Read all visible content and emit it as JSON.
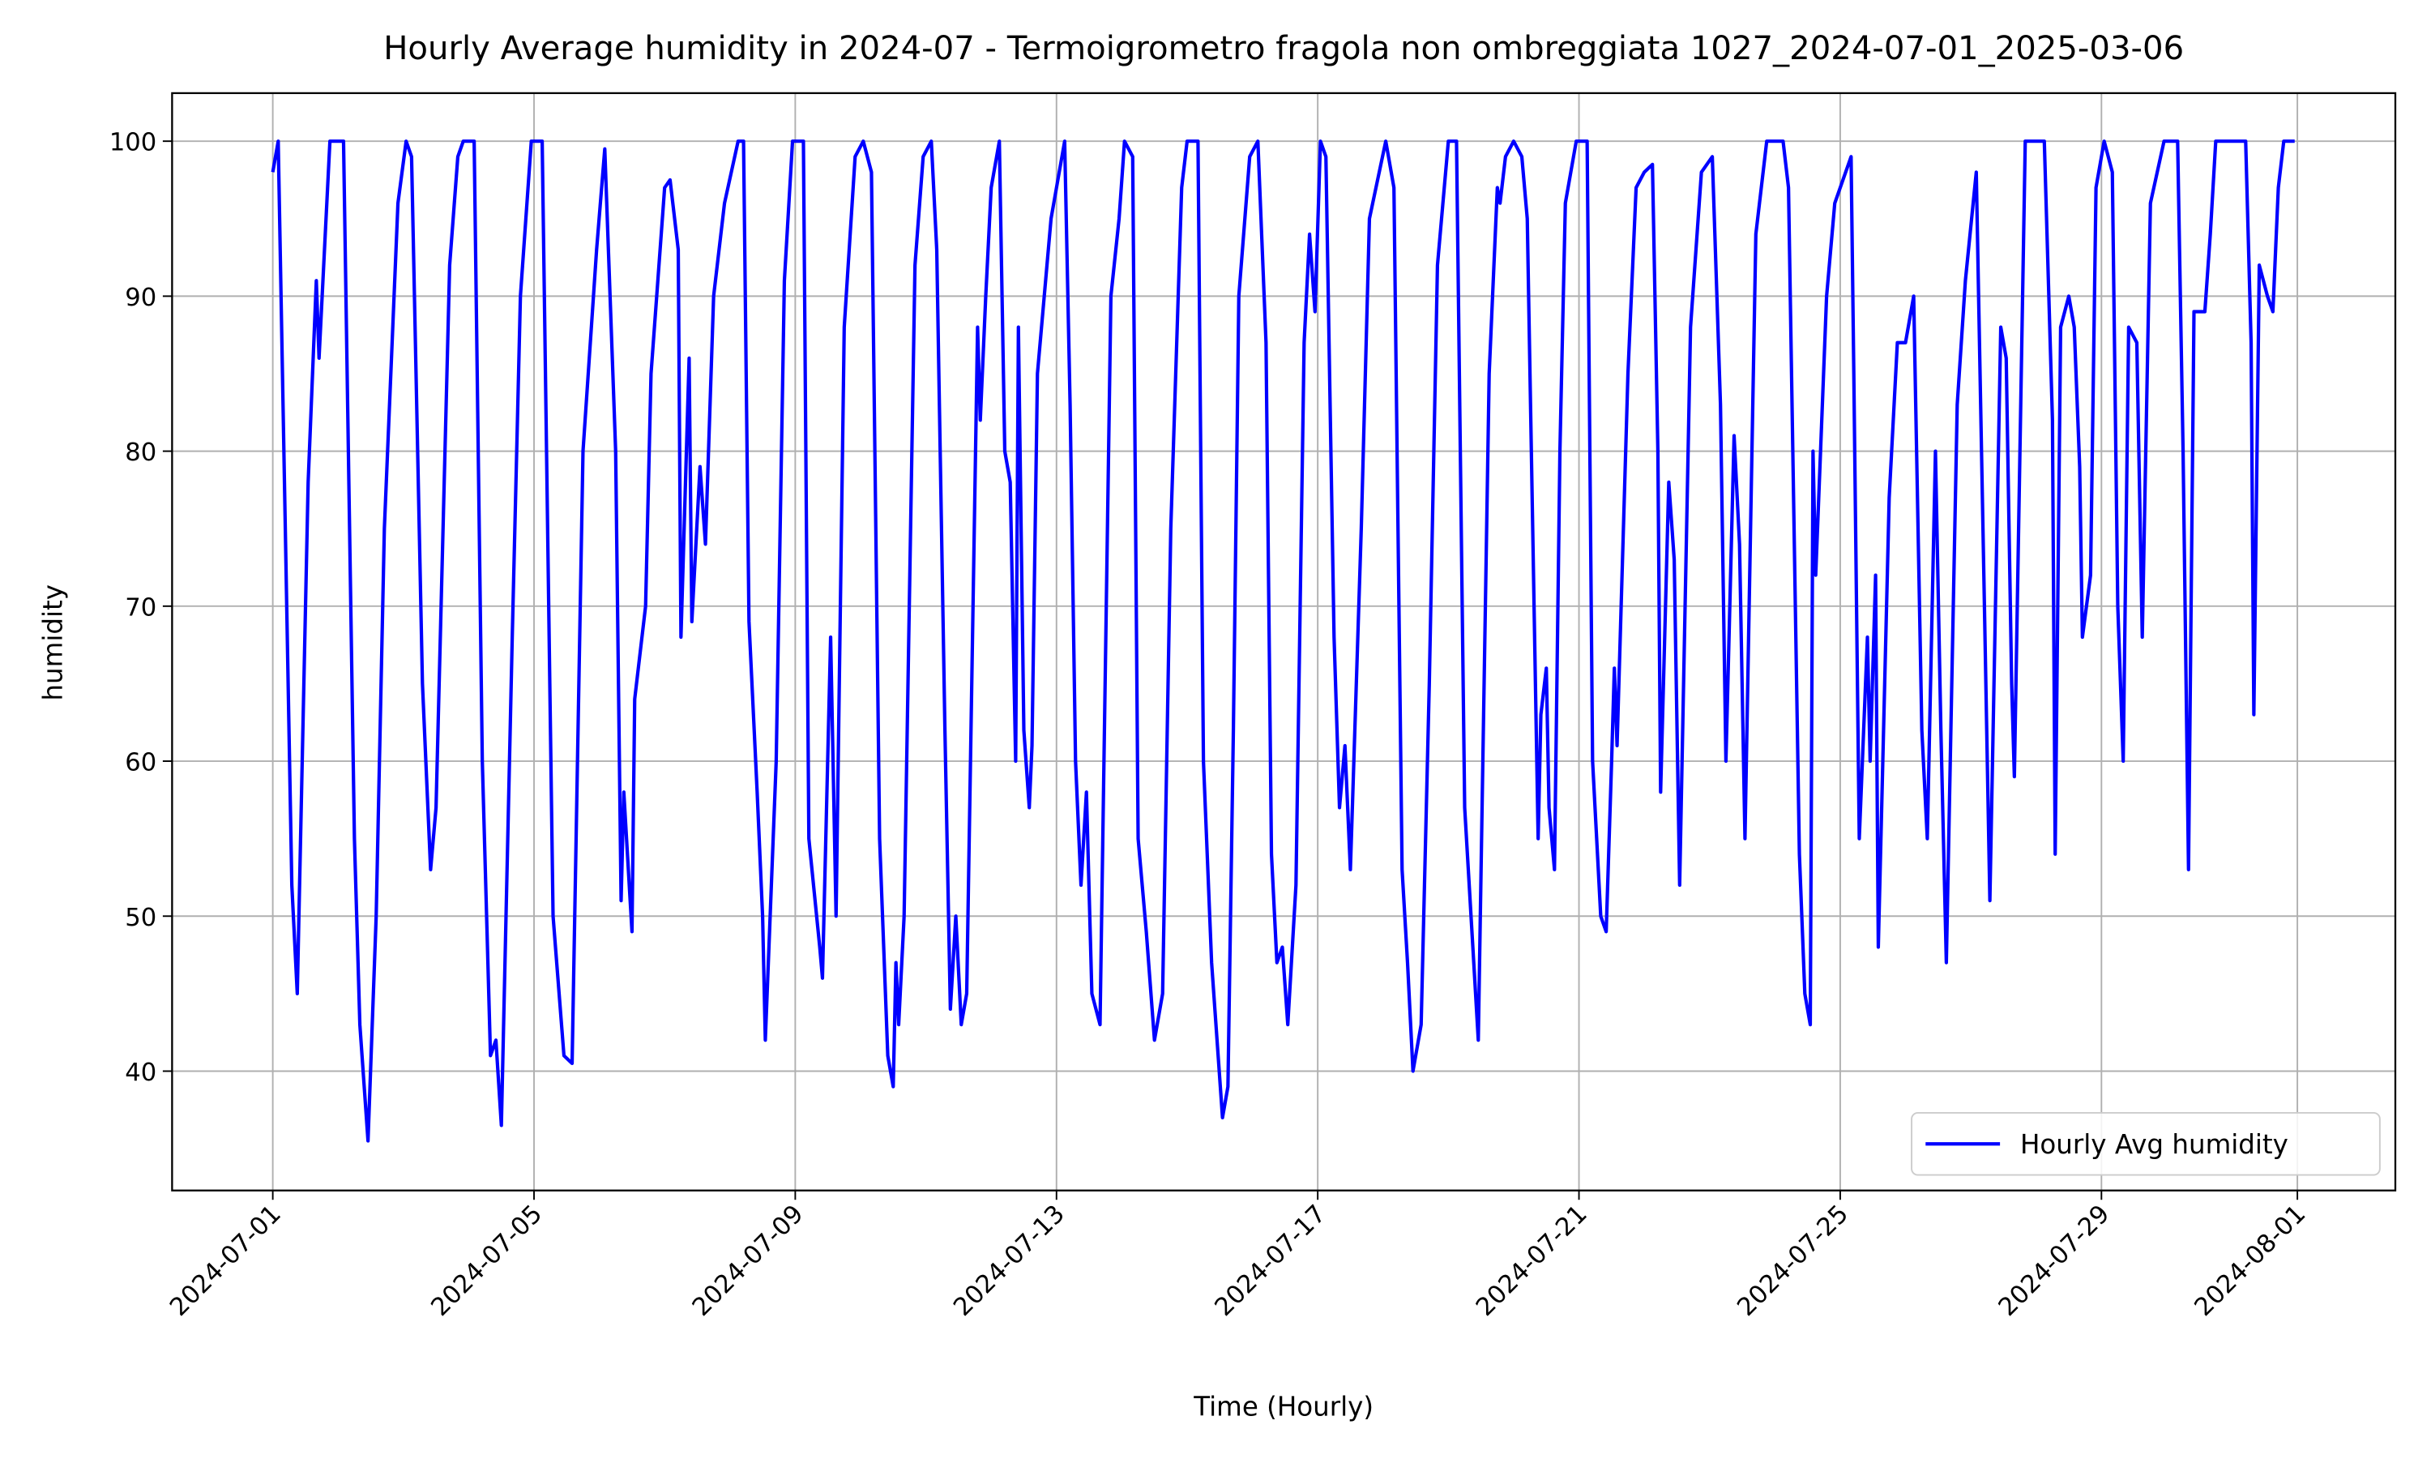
{
  "chart_data": {
    "type": "line",
    "title": "Hourly Average humidity in 2024-07 - Termoigrometro fragola non ombreggiata 1027_2024-07-01_2025-03-06",
    "x_label": "Time (Hourly)",
    "y_label": "humidity",
    "x": [
      "2024-07-01 00:00",
      "2024-07-01 02:00",
      "2024-07-01 07:00",
      "2024-07-01 09:00",
      "2024-07-01 13:00",
      "2024-07-01 16:00",
      "2024-07-01 17:00",
      "2024-07-01 21:00",
      "2024-07-02 02:00",
      "2024-07-02 06:00",
      "2024-07-02 08:00",
      "2024-07-02 11:00",
      "2024-07-02 14:00",
      "2024-07-02 17:00",
      "2024-07-02 22:00",
      "2024-07-03 01:00",
      "2024-07-03 03:00",
      "2024-07-03 07:00",
      "2024-07-03 10:00",
      "2024-07-03 12:00",
      "2024-07-03 17:00",
      "2024-07-03 20:00",
      "2024-07-03 22:00",
      "2024-07-04 02:00",
      "2024-07-04 05:00",
      "2024-07-04 08:00",
      "2024-07-04 10:00",
      "2024-07-04 12:00",
      "2024-07-04 16:00",
      "2024-07-04 19:00",
      "2024-07-04 23:00",
      "2024-07-05 03:00",
      "2024-07-05 07:00",
      "2024-07-05 11:00",
      "2024-07-05 14:00",
      "2024-07-05 18:00",
      "2024-07-05 23:00",
      "2024-07-06 02:00",
      "2024-07-06 06:00",
      "2024-07-06 08:00",
      "2024-07-06 09:00",
      "2024-07-06 12:00",
      "2024-07-06 13:00",
      "2024-07-06 17:00",
      "2024-07-06 19:00",
      "2024-07-07 00:00",
      "2024-07-07 02:00",
      "2024-07-07 05:00",
      "2024-07-07 06:00",
      "2024-07-07 09:00",
      "2024-07-07 10:00",
      "2024-07-07 13:00",
      "2024-07-07 15:00",
      "2024-07-07 18:00",
      "2024-07-07 22:00",
      "2024-07-08 03:00",
      "2024-07-08 05:00",
      "2024-07-08 07:00",
      "2024-07-08 10:00",
      "2024-07-08 12:00",
      "2024-07-08 13:00",
      "2024-07-08 17:00",
      "2024-07-08 20:00",
      "2024-07-08 23:00",
      "2024-07-09 03:00",
      "2024-07-09 05:00",
      "2024-07-09 09:00",
      "2024-07-09 10:00",
      "2024-07-09 13:00",
      "2024-07-09 15:00",
      "2024-07-09 18:00",
      "2024-07-09 22:00",
      "2024-07-10 01:00",
      "2024-07-10 04:00",
      "2024-07-10 07:00",
      "2024-07-10 10:00",
      "2024-07-10 12:00",
      "2024-07-10 13:00",
      "2024-07-10 14:00",
      "2024-07-10 16:00",
      "2024-07-10 20:00",
      "2024-07-10 23:00",
      "2024-07-11 02:00",
      "2024-07-11 04:00",
      "2024-07-11 07:00",
      "2024-07-11 09:00",
      "2024-07-11 11:00",
      "2024-07-11 13:00",
      "2024-07-11 15:00",
      "2024-07-11 19:00",
      "2024-07-11 20:00",
      "2024-07-11 22:00",
      "2024-07-12 00:00",
      "2024-07-12 03:00",
      "2024-07-12 05:00",
      "2024-07-12 07:00",
      "2024-07-12 09:00",
      "2024-07-12 10:00",
      "2024-07-12 12:00",
      "2024-07-12 14:00",
      "2024-07-12 15:00",
      "2024-07-12 17:00",
      "2024-07-12 22:00",
      "2024-07-13 03:00",
      "2024-07-13 05:00",
      "2024-07-13 07:00",
      "2024-07-13 09:00",
      "2024-07-13 11:00",
      "2024-07-13 13:00",
      "2024-07-13 16:00",
      "2024-07-13 20:00",
      "2024-07-13 23:00",
      "2024-07-14 01:00",
      "2024-07-14 04:00",
      "2024-07-14 06:00",
      "2024-07-14 09:00",
      "2024-07-14 12:00",
      "2024-07-14 15:00",
      "2024-07-14 18:00",
      "2024-07-14 22:00",
      "2024-07-15 00:00",
      "2024-07-15 04:00",
      "2024-07-15 06:00",
      "2024-07-15 09:00",
      "2024-07-15 13:00",
      "2024-07-15 15:00",
      "2024-07-15 17:00",
      "2024-07-15 19:00",
      "2024-07-15 23:00",
      "2024-07-16 02:00",
      "2024-07-16 05:00",
      "2024-07-16 07:00",
      "2024-07-16 09:00",
      "2024-07-16 11:00",
      "2024-07-16 13:00",
      "2024-07-16 16:00",
      "2024-07-16 19:00",
      "2024-07-16 21:00",
      "2024-07-16 23:00",
      "2024-07-17 01:00",
      "2024-07-17 03:00",
      "2024-07-17 06:00",
      "2024-07-17 08:00",
      "2024-07-17 10:00",
      "2024-07-17 12:00",
      "2024-07-17 16:00",
      "2024-07-17 19:00",
      "2024-07-18 01:00",
      "2024-07-18 04:00",
      "2024-07-18 07:00",
      "2024-07-18 09:00",
      "2024-07-18 11:00",
      "2024-07-18 14:00",
      "2024-07-18 17:00",
      "2024-07-18 20:00",
      "2024-07-19 00:00",
      "2024-07-19 03:00",
      "2024-07-19 06:00",
      "2024-07-19 09:00",
      "2024-07-19 11:00",
      "2024-07-19 15:00",
      "2024-07-19 18:00",
      "2024-07-19 19:00",
      "2024-07-19 21:00",
      "2024-07-20 00:00",
      "2024-07-20 03:00",
      "2024-07-20 05:00",
      "2024-07-20 09:00",
      "2024-07-20 10:00",
      "2024-07-20 12:00",
      "2024-07-20 13:00",
      "2024-07-20 15:00",
      "2024-07-20 17:00",
      "2024-07-20 19:00",
      "2024-07-20 23:00",
      "2024-07-21 03:00",
      "2024-07-21 05:00",
      "2024-07-21 08:00",
      "2024-07-21 10:00",
      "2024-07-21 12:00",
      "2024-07-21 13:00",
      "2024-07-21 14:00",
      "2024-07-21 18:00",
      "2024-07-21 21:00",
      "2024-07-22 00:00",
      "2024-07-22 03:00",
      "2024-07-22 05:00",
      "2024-07-22 06:00",
      "2024-07-22 09:00",
      "2024-07-22 11:00",
      "2024-07-22 13:00",
      "2024-07-22 17:00",
      "2024-07-22 21:00",
      "2024-07-23 01:00",
      "2024-07-23 04:00",
      "2024-07-23 06:00",
      "2024-07-23 09:00",
      "2024-07-23 11:00",
      "2024-07-23 13:00",
      "2024-07-23 17:00",
      "2024-07-23 21:00",
      "2024-07-24 03:00",
      "2024-07-24 05:00",
      "2024-07-24 09:00",
      "2024-07-24 11:00",
      "2024-07-24 13:00",
      "2024-07-24 14:00",
      "2024-07-24 15:00",
      "2024-07-24 19:00",
      "2024-07-24 22:00",
      "2024-07-25 02:00",
      "2024-07-25 04:00",
      "2024-07-25 05:00",
      "2024-07-25 07:00",
      "2024-07-25 10:00",
      "2024-07-25 11:00",
      "2024-07-25 13:00",
      "2024-07-25 14:00",
      "2024-07-25 18:00",
      "2024-07-25 21:00",
      "2024-07-26 00:00",
      "2024-07-26 03:00",
      "2024-07-26 06:00",
      "2024-07-26 08:00",
      "2024-07-26 11:00",
      "2024-07-26 13:00",
      "2024-07-26 15:00",
      "2024-07-26 19:00",
      "2024-07-26 22:00",
      "2024-07-27 02:00",
      "2024-07-27 05:00",
      "2024-07-27 07:00",
      "2024-07-27 11:00",
      "2024-07-27 13:00",
      "2024-07-27 15:00",
      "2024-07-27 16:00",
      "2024-07-27 20:00",
      "2024-07-27 23:00",
      "2024-07-28 03:00",
      "2024-07-28 06:00",
      "2024-07-28 07:00",
      "2024-07-28 09:00",
      "2024-07-28 12:00",
      "2024-07-28 14:00",
      "2024-07-28 16:00",
      "2024-07-28 17:00",
      "2024-07-28 20:00",
      "2024-07-28 22:00",
      "2024-07-29 01:00",
      "2024-07-29 04:00",
      "2024-07-29 06:00",
      "2024-07-29 08:00",
      "2024-07-29 10:00",
      "2024-07-29 13:00",
      "2024-07-29 15:00",
      "2024-07-29 18:00",
      "2024-07-29 23:00",
      "2024-07-30 04:00",
      "2024-07-30 06:00",
      "2024-07-30 08:00",
      "2024-07-30 10:00",
      "2024-07-30 14:00",
      "2024-07-30 16:00",
      "2024-07-30 18:00",
      "2024-07-31 00:00",
      "2024-07-31 05:00",
      "2024-07-31 07:00",
      "2024-07-31 08:00",
      "2024-07-31 10:00",
      "2024-07-31 13:00",
      "2024-07-31 15:00",
      "2024-07-31 17:00",
      "2024-07-31 19:00",
      "2024-07-31 23:00"
    ],
    "series": [
      {
        "name": "Hourly Avg humidity",
        "color": "#0000ff",
        "values": [
          98,
          100,
          52,
          45,
          78,
          91,
          86,
          100,
          100,
          55,
          43,
          35.5,
          50,
          75,
          96,
          100,
          99,
          65,
          53,
          57,
          92,
          99,
          100,
          100,
          60,
          41,
          42,
          36.5,
          68,
          90,
          100,
          100,
          50,
          41,
          40.5,
          80,
          93,
          99.5,
          80,
          51,
          58,
          49,
          64,
          70,
          85,
          97,
          97.5,
          93,
          68,
          86,
          69,
          79,
          74,
          90,
          96,
          100,
          100,
          69,
          58,
          50,
          42,
          60,
          91,
          100,
          100,
          55,
          48,
          46,
          68,
          50,
          88,
          99,
          100,
          98,
          55,
          41,
          39,
          47,
          43,
          50,
          92,
          99,
          100,
          93,
          62,
          44,
          50,
          43,
          45,
          88,
          82,
          90,
          97,
          100,
          80,
          78,
          60,
          88,
          62,
          57,
          61,
          85,
          95,
          100,
          83,
          60,
          52,
          58,
          45,
          43,
          90,
          95,
          100,
          99,
          55,
          49,
          42,
          45,
          75,
          97,
          100,
          100,
          60,
          47,
          37,
          39,
          62,
          90,
          99,
          100,
          87,
          54,
          47,
          48,
          43,
          52,
          87,
          94,
          89,
          100,
          99,
          68,
          57,
          61,
          53,
          75,
          95,
          100,
          97,
          53,
          47,
          40,
          43,
          65,
          92,
          100,
          100,
          57,
          48,
          42,
          85,
          97,
          96,
          99,
          100,
          99,
          95,
          55,
          63,
          66,
          57,
          53,
          80,
          96,
          100,
          100,
          60,
          50,
          49,
          60,
          66,
          61,
          85,
          97,
          98,
          98.5,
          80,
          58,
          78,
          73,
          52,
          88,
          98,
          99,
          83,
          60,
          81,
          74,
          55,
          94,
          100,
          100,
          97,
          54,
          45,
          43,
          80,
          72,
          90,
          96,
          98,
          99,
          85,
          55,
          68,
          60,
          72,
          48,
          77,
          87,
          87,
          90,
          62,
          55,
          80,
          62,
          47,
          83,
          91,
          98,
          70,
          51,
          88,
          86,
          65,
          59,
          100,
          100,
          100,
          82,
          54,
          88,
          90,
          88,
          79,
          68,
          72,
          97,
          100,
          98,
          70,
          60,
          88,
          87,
          68,
          96,
          100,
          100,
          80,
          53,
          89,
          89,
          94,
          100,
          100,
          100,
          87,
          63,
          92,
          90,
          89,
          97,
          100,
          100
        ]
      }
    ],
    "xlim": [
      "2024-06-29 11:00",
      "2024-08-02 12:00"
    ],
    "xticks": [
      "2024-07-01",
      "2024-07-05",
      "2024-07-09",
      "2024-07-13",
      "2024-07-17",
      "2024-07-21",
      "2024-07-25",
      "2024-07-29",
      "2024-08-01"
    ],
    "ylim": [
      32.3,
      103.1
    ],
    "yticks": [
      40,
      50,
      60,
      70,
      80,
      90,
      100
    ],
    "grid": true,
    "legend": "lower right"
  }
}
